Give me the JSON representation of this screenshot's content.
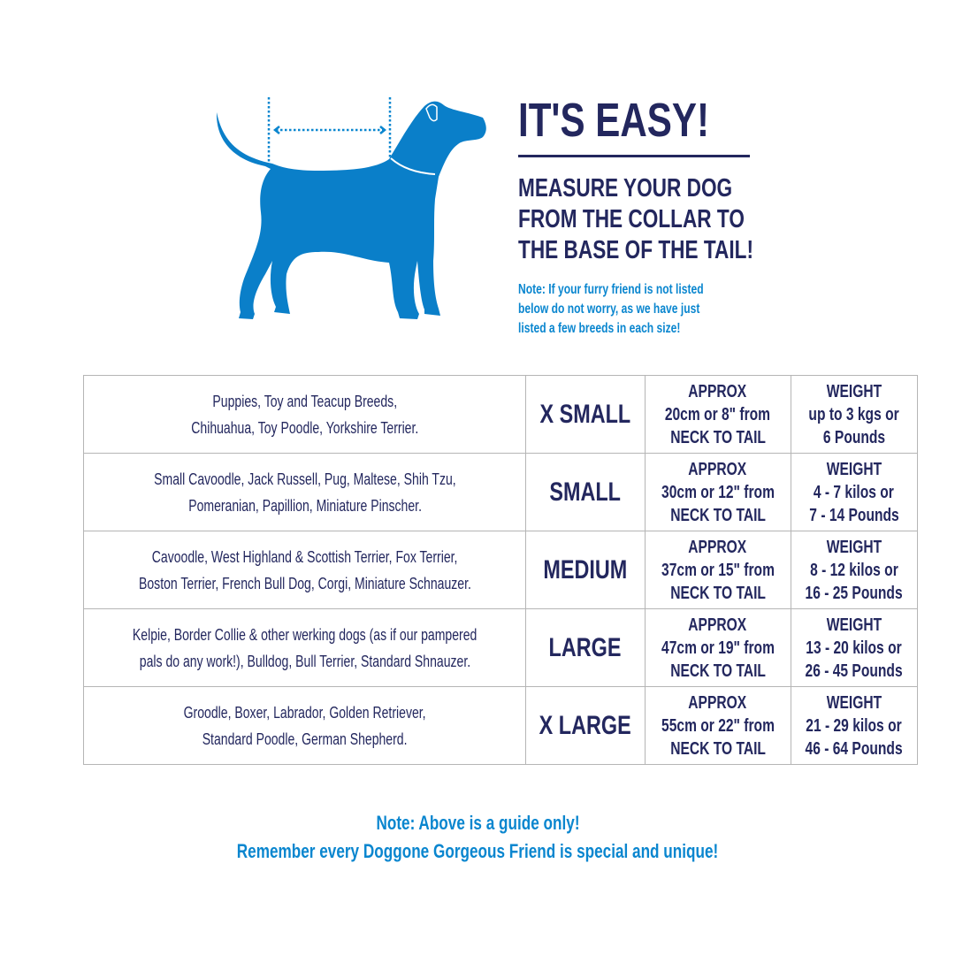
{
  "header": {
    "title": "IT'S EASY!",
    "instruction_lines": [
      "MEASURE YOUR DOG",
      "FROM THE COLLAR TO",
      "THE BASE OF THE TAIL!"
    ],
    "note_lines": [
      "Note: If your furry friend is not listed",
      "below do not worry, as we have just",
      "listed a few breeds in each size!"
    ]
  },
  "illustration": {
    "icon": "dog-silhouette-measurement-icon",
    "color": "#0a7fc9"
  },
  "table": {
    "rows": [
      {
        "breeds": [
          "Puppies, Toy and Teacup Breeds,",
          "Chihuahua, Toy Poodle, Yorkshire Terrier."
        ],
        "size": "X SMALL",
        "length": [
          "APPROX",
          "20cm or 8\" from",
          "NECK TO TAIL"
        ],
        "weight": [
          "WEIGHT",
          "up to 3 kgs or",
          "6 Pounds"
        ]
      },
      {
        "breeds": [
          "Small Cavoodle, Jack Russell, Pug, Maltese, Shih Tzu,",
          "Pomeranian, Papillion, Miniature Pinscher."
        ],
        "size": "SMALL",
        "length": [
          "APPROX",
          "30cm or 12\" from",
          "NECK TO TAIL"
        ],
        "weight": [
          "WEIGHT",
          "4 - 7 kilos or",
          "7 - 14 Pounds"
        ]
      },
      {
        "breeds": [
          "Cavoodle, West Highland & Scottish Terrier, Fox Terrier,",
          "Boston Terrier, French Bull Dog, Corgi, Miniature Schnauzer."
        ],
        "size": "MEDIUM",
        "length": [
          "APPROX",
          "37cm or 15\" from",
          "NECK TO TAIL"
        ],
        "weight": [
          "WEIGHT",
          "8 - 12 kilos or",
          "16 - 25 Pounds"
        ]
      },
      {
        "breeds": [
          "Kelpie, Border Collie & other werking dogs (as if our pampered",
          "pals do any work!), Bulldog, Bull Terrier, Standard Shnauzer."
        ],
        "size": "LARGE",
        "length": [
          "APPROX",
          "47cm or 19\" from",
          "NECK TO TAIL"
        ],
        "weight": [
          "WEIGHT",
          "13 - 20 kilos or",
          "26 - 45 Pounds"
        ]
      },
      {
        "breeds": [
          "Groodle, Boxer, Labrador,  Golden Retriever,",
          "Standard Poodle, German Shepherd."
        ],
        "size": "X LARGE",
        "length": [
          "APPROX",
          "55cm or 22\" from",
          "NECK TO TAIL"
        ],
        "weight": [
          "WEIGHT",
          "21 - 29 kilos or",
          "46 - 64 Pounds"
        ]
      }
    ]
  },
  "footer": {
    "line1": "Note: Above is a guide only!",
    "line2": "Remember every Doggone Gorgeous Friend is special and unique!"
  },
  "colors": {
    "navy": "#23275e",
    "blue": "#0a86cf",
    "border": "#b5b5b5"
  }
}
